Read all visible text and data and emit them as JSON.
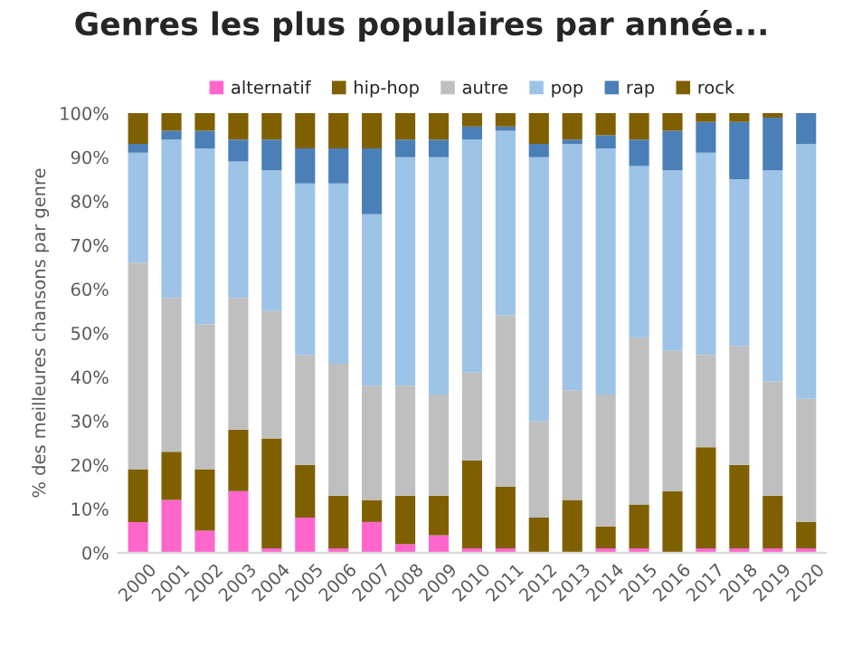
{
  "chart_data": {
    "type": "bar",
    "stacked": true,
    "title": "Genres les plus populaires par année...",
    "ylabel": "% des meilleures chansons par genre",
    "categories": [
      "2000",
      "2001",
      "2002",
      "2003",
      "2004",
      "2005",
      "2006",
      "2007",
      "2008",
      "2009",
      "2010",
      "2011",
      "2012",
      "2013",
      "2014",
      "2015",
      "2016",
      "2017",
      "2018",
      "2019",
      "2020"
    ],
    "ylim": [
      0,
      100
    ],
    "yticks": [
      {
        "value": 0,
        "label": "0%"
      },
      {
        "value": 10,
        "label": "10%"
      },
      {
        "value": 20,
        "label": "20%"
      },
      {
        "value": 30,
        "label": "30%"
      },
      {
        "value": 40,
        "label": "40%"
      },
      {
        "value": 50,
        "label": "50%"
      },
      {
        "value": 60,
        "label": "60%"
      },
      {
        "value": 70,
        "label": "70%"
      },
      {
        "value": 80,
        "label": "80%"
      },
      {
        "value": 90,
        "label": "90%"
      },
      {
        "value": 100,
        "label": "100%"
      }
    ],
    "legend": "top",
    "series": [
      {
        "name": "alternatif",
        "color": "#ff66cc",
        "values": [
          7,
          12,
          5,
          14,
          1,
          8,
          1,
          7,
          2,
          4,
          1,
          1,
          0,
          0,
          1,
          1,
          0,
          1,
          1,
          1,
          1
        ]
      },
      {
        "name": "hip-hop",
        "color": "#7f6000",
        "values": [
          12,
          11,
          14,
          14,
          25,
          12,
          12,
          5,
          11,
          9,
          20,
          14,
          8,
          12,
          5,
          10,
          14,
          23,
          19,
          12,
          6
        ]
      },
      {
        "name": "autre",
        "color": "#bfbfbf",
        "values": [
          47,
          35,
          33,
          30,
          29,
          25,
          30,
          26,
          25,
          23,
          20,
          39,
          22,
          25,
          30,
          38,
          32,
          21,
          27,
          26,
          28
        ]
      },
      {
        "name": "pop",
        "color": "#9dc3e6",
        "values": [
          25,
          36,
          40,
          31,
          32,
          39,
          41,
          39,
          52,
          54,
          53,
          42,
          60,
          56,
          56,
          39,
          41,
          46,
          38,
          48,
          58
        ]
      },
      {
        "name": "rap",
        "color": "#4a7fb8",
        "values": [
          2,
          2,
          4,
          5,
          7,
          8,
          8,
          15,
          4,
          4,
          3,
          1,
          3,
          1,
          3,
          6,
          9,
          7,
          13,
          12,
          7
        ]
      },
      {
        "name": "rock",
        "color": "#7f6000",
        "values": [
          7,
          4,
          4,
          6,
          6,
          8,
          8,
          8,
          6,
          6,
          3,
          3,
          7,
          6,
          5,
          6,
          4,
          2,
          2,
          1,
          0
        ]
      }
    ]
  }
}
